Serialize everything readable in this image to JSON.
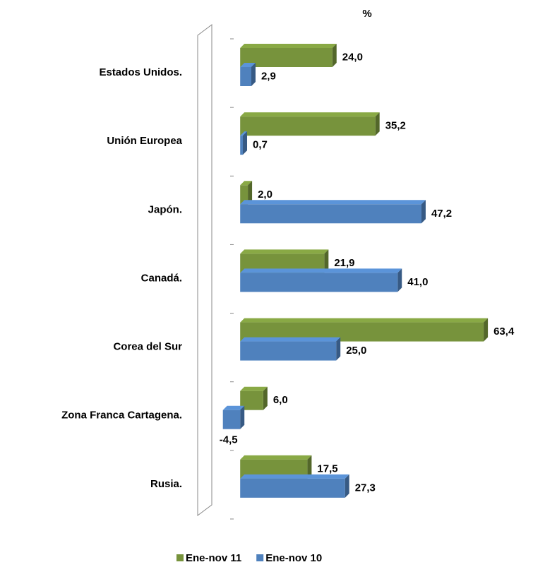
{
  "chart_data": {
    "type": "bar",
    "orientation": "horizontal",
    "axis_label": "%",
    "categories": [
      "Estados Unidos.",
      "Unión Europea",
      "Japón.",
      "Canadá.",
      "Corea del Sur",
      "Zona Franca Cartagena.",
      "Rusia."
    ],
    "series": [
      {
        "name": "Ene-nov 11",
        "color": "#77933c",
        "values": [
          24.0,
          35.2,
          2.0,
          21.9,
          63.4,
          6.0,
          17.5
        ],
        "value_labels": [
          "24,0",
          "35,2",
          "2,0",
          "21,9",
          "63,4",
          "6,0",
          "17,5"
        ]
      },
      {
        "name": "Ene-nov 10",
        "color": "#4f81bd",
        "values": [
          2.9,
          0.7,
          47.2,
          41.0,
          25.0,
          -4.5,
          27.3
        ],
        "value_labels": [
          "2,9",
          "0,7",
          "47,2",
          "41,0",
          "25,0",
          "-4,5",
          "27,3"
        ]
      }
    ],
    "xlim": [
      -5,
      70
    ]
  }
}
